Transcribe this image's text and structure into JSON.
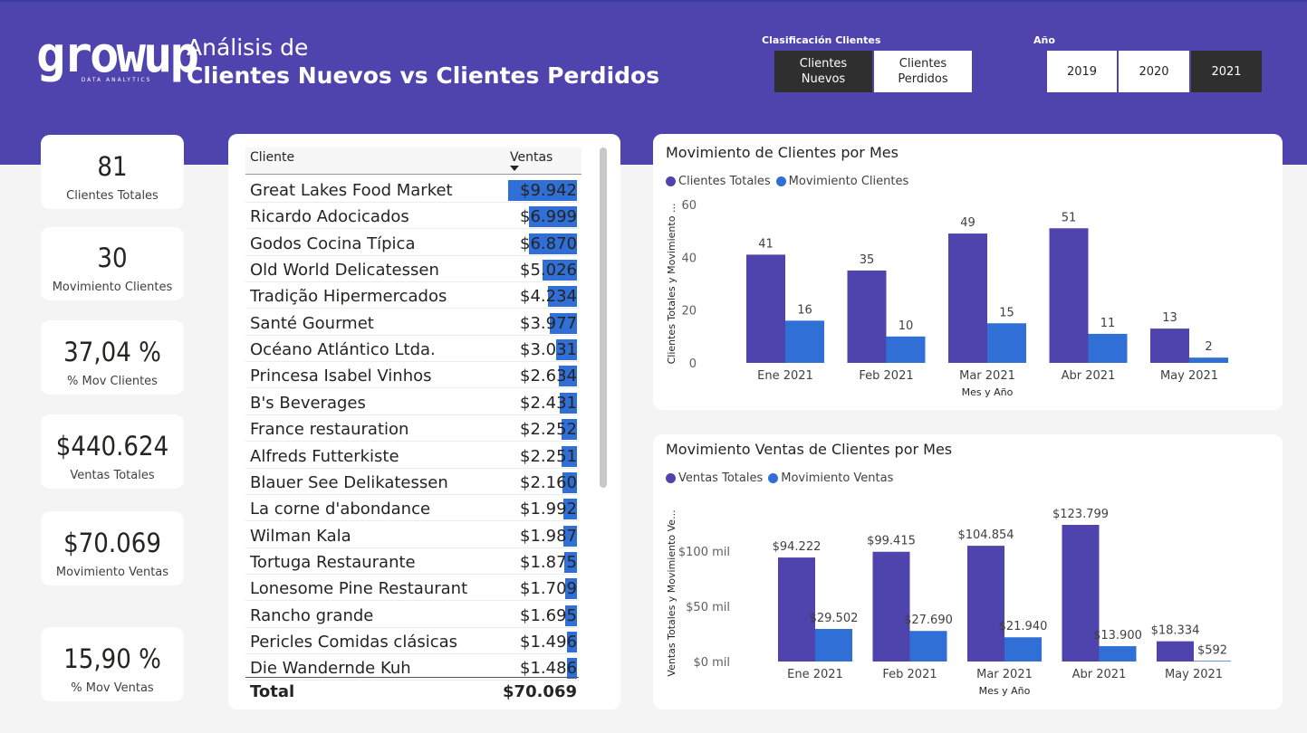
{
  "logo": {
    "word": "growup",
    "sub": "DATA ANALYTICS"
  },
  "title": {
    "line1": "Análisis de",
    "line2": "Clientes Nuevos vs Clientes Perdidos"
  },
  "slicers": {
    "clasificacion": {
      "label": "Clasificación Clientes",
      "options": [
        {
          "label": "Clientes Nuevos",
          "selected": true
        },
        {
          "label": "Clientes Perdidos",
          "selected": false
        }
      ]
    },
    "anio": {
      "label": "Año",
      "options": [
        {
          "label": "2019",
          "selected": false
        },
        {
          "label": "2020",
          "selected": false
        },
        {
          "label": "2021",
          "selected": true
        }
      ]
    }
  },
  "kpis": [
    {
      "value": "81",
      "label": "Clientes Totales"
    },
    {
      "value": "30",
      "label": "Movimiento Clientes"
    },
    {
      "value": "37,04 %",
      "label": "% Mov Clientes"
    },
    {
      "value": "$440.624",
      "label": "Ventas Totales"
    },
    {
      "value": "$70.069",
      "label": "Movimiento Ventas"
    },
    {
      "value": "15,90 %",
      "label": "% Mov Ventas"
    }
  ],
  "table": {
    "columns": [
      "Cliente",
      "Ventas"
    ],
    "max_value": 9942,
    "rows": [
      {
        "name": "Great Lakes Food Market",
        "value": 9942,
        "label": "$9.942"
      },
      {
        "name": "Ricardo Adocicados",
        "value": 6999,
        "label": "$6.999"
      },
      {
        "name": "Godos Cocina Típica",
        "value": 6870,
        "label": "$6.870"
      },
      {
        "name": "Old World Delicatessen",
        "value": 5026,
        "label": "$5.026"
      },
      {
        "name": "Tradição Hipermercados",
        "value": 4234,
        "label": "$4.234"
      },
      {
        "name": "Santé Gourmet",
        "value": 3977,
        "label": "$3.977"
      },
      {
        "name": "Océano Atlántico Ltda.",
        "value": 3031,
        "label": "$3.031"
      },
      {
        "name": "Princesa Isabel Vinhos",
        "value": 2634,
        "label": "$2.634"
      },
      {
        "name": "B's Beverages",
        "value": 2431,
        "label": "$2.431"
      },
      {
        "name": "France restauration",
        "value": 2252,
        "label": "$2.252"
      },
      {
        "name": "Alfreds Futterkiste",
        "value": 2251,
        "label": "$2.251"
      },
      {
        "name": "Blauer See Delikatessen",
        "value": 2160,
        "label": "$2.160"
      },
      {
        "name": "La corne d'abondance",
        "value": 1992,
        "label": "$1.992"
      },
      {
        "name": "Wilman Kala",
        "value": 1987,
        "label": "$1.987"
      },
      {
        "name": "Tortuga Restaurante",
        "value": 1875,
        "label": "$1.875"
      },
      {
        "name": "Lonesome Pine Restaurant",
        "value": 1709,
        "label": "$1.709"
      },
      {
        "name": "Rancho grande",
        "value": 1695,
        "label": "$1.695"
      },
      {
        "name": "Pericles Comidas clásicas",
        "value": 1496,
        "label": "$1.496"
      },
      {
        "name": "Die Wandernde Kuh",
        "value": 1486,
        "label": "$1.486"
      }
    ],
    "total_label": "Total",
    "total_value": "$70.069"
  },
  "colors": {
    "primary": "#4f44ad",
    "secondary": "#2f6fd6",
    "header": "#4f44ad"
  },
  "chart_data": [
    {
      "type": "bar",
      "title": "Movimiento de Clientes por Mes",
      "categories": [
        "Ene 2021",
        "Feb 2021",
        "Mar 2021",
        "Abr 2021",
        "May 2021"
      ],
      "series": [
        {
          "name": "Clientes Totales",
          "values": [
            41,
            35,
            49,
            51,
            13
          ],
          "labels": [
            "41",
            "35",
            "49",
            "51",
            "13"
          ]
        },
        {
          "name": "Movimiento Clientes",
          "values": [
            16,
            10,
            15,
            11,
            2
          ],
          "labels": [
            "16",
            "10",
            "15",
            "11",
            "2"
          ]
        }
      ],
      "xlabel": "Mes y Año",
      "ylabel": "Clientes Totales y Movimiento ...",
      "ylim": [
        0,
        60
      ],
      "yticks": [
        0,
        20,
        40,
        60
      ],
      "yticklabels": [
        "0",
        "20",
        "40",
        "60"
      ],
      "legend": "top-left",
      "grid": false
    },
    {
      "type": "bar",
      "title": "Movimiento Ventas de Clientes por Mes",
      "categories": [
        "Ene 2021",
        "Feb 2021",
        "Mar 2021",
        "Abr 2021",
        "May 2021"
      ],
      "series": [
        {
          "name": "Ventas Totales",
          "values": [
            94222,
            99415,
            104854,
            123799,
            18334
          ],
          "labels": [
            "$94.222",
            "$99.415",
            "$104.854",
            "$123.799",
            "$18.334"
          ]
        },
        {
          "name": "Movimiento Ventas",
          "values": [
            29502,
            27690,
            21940,
            13900,
            592
          ],
          "labels": [
            "$29.502",
            "$27.690",
            "$21.940",
            "$13.900",
            "$592"
          ]
        }
      ],
      "xlabel": "Mes y Año",
      "ylabel": "Ventas Totales y Movimiento Ve...",
      "ylim": [
        0,
        123799
      ],
      "yticks": [
        0,
        50000,
        100000
      ],
      "yticklabels": [
        "$0 mil",
        "$50 mil",
        "$100 mil"
      ],
      "legend": "top-left",
      "grid": false
    }
  ]
}
